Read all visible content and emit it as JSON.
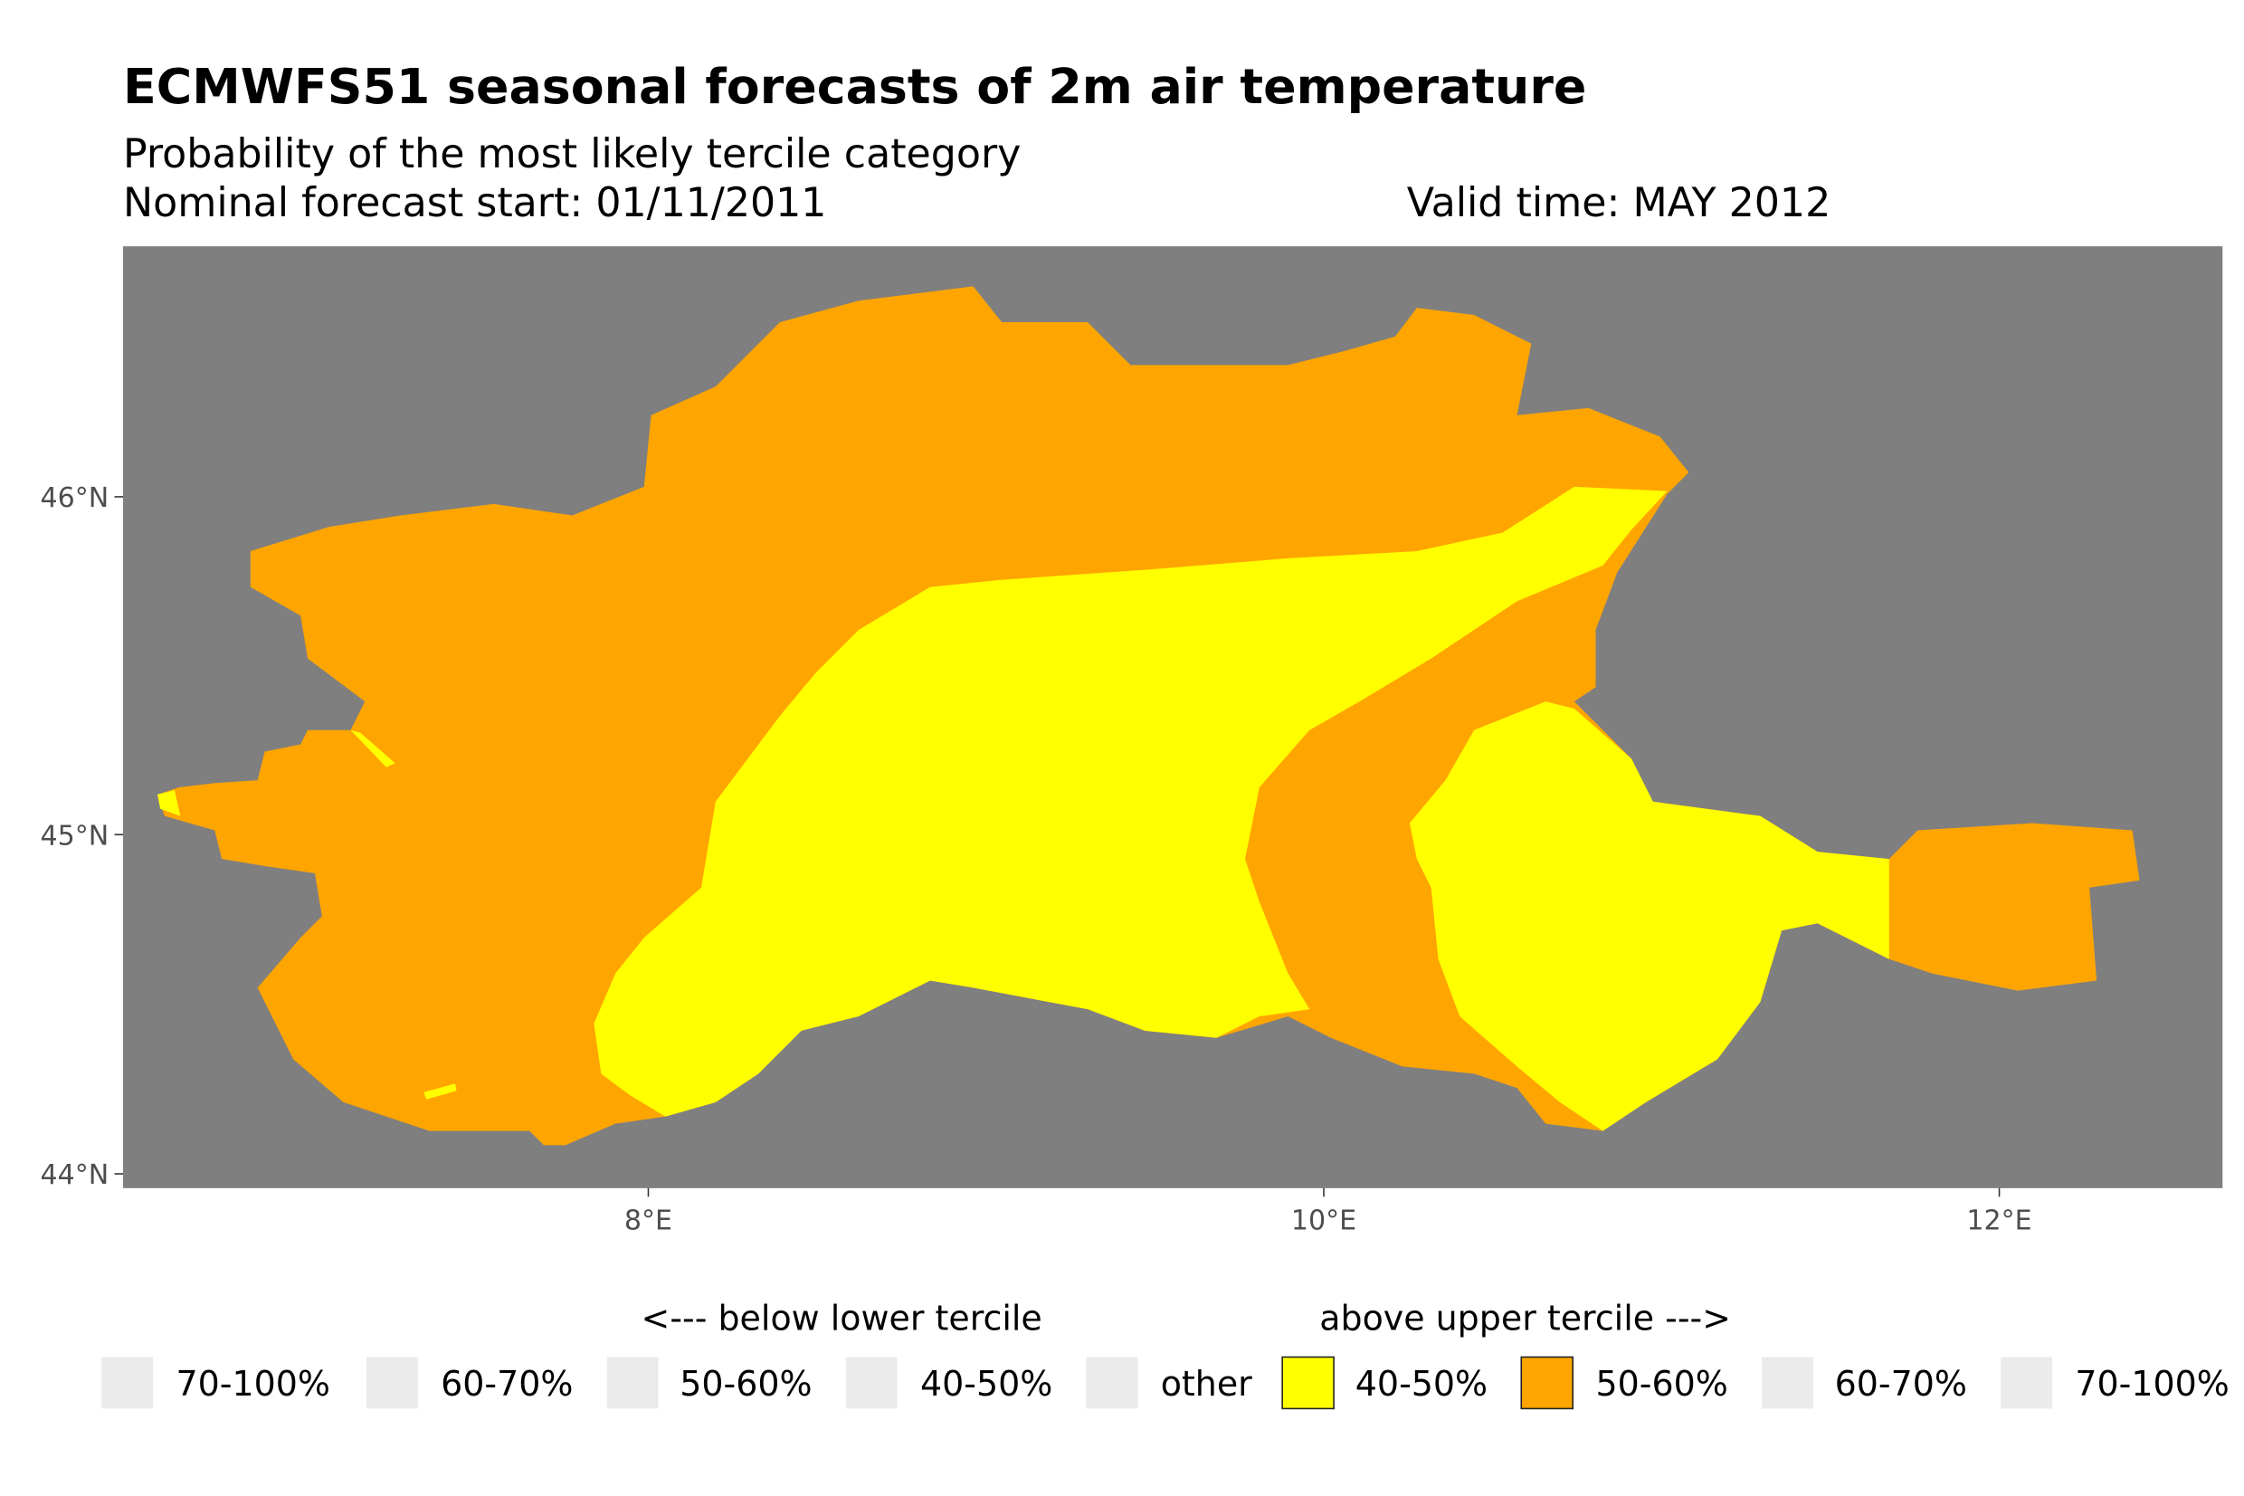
{
  "title": "ECMWFS51 seasonal forecasts of 2m air temperature",
  "subtitle": "Probability of the most likely tercile category",
  "forecast_start": "Nominal forecast start: 01/11/2011",
  "valid_time": "Valid time: MAY 2012",
  "colors": {
    "background": "#7f7f7f",
    "yellow": "#ffff00",
    "orange": "#ffa500",
    "empty_key": "#ebebeb"
  },
  "chart_data": {
    "type": "heatmap",
    "title": "ECMWFS51 seasonal forecasts of 2m air temperature",
    "x_ticks": [
      "8°E",
      "10°E",
      "12°E"
    ],
    "y_ticks": [
      "44°N",
      "45°N",
      "46°N"
    ],
    "xlim": [
      6.44,
      12.66
    ],
    "ylim": [
      43.96,
      46.74
    ],
    "legend_position": "bottom",
    "legend": {
      "below_label": "<--- below lower tercile",
      "above_label": "above upper tercile --->",
      "items": [
        "70-100%",
        "60-70%",
        "50-60%",
        "40-50%",
        "other",
        "40-50%",
        "50-60%",
        "60-70%",
        "70-100%"
      ]
    },
    "regions": [
      {
        "category": "above upper tercile 50-60%",
        "color": "#ffa500",
        "area": "western and northern outer belt, eastern strip near 10-10.8°E, and eastern lobe 11.7-12.4°E"
      },
      {
        "category": "above upper tercile 40-50%",
        "color": "#ffff00",
        "area": "central plain 8-11°E and southeast block 10.3-11.7°E"
      }
    ]
  }
}
